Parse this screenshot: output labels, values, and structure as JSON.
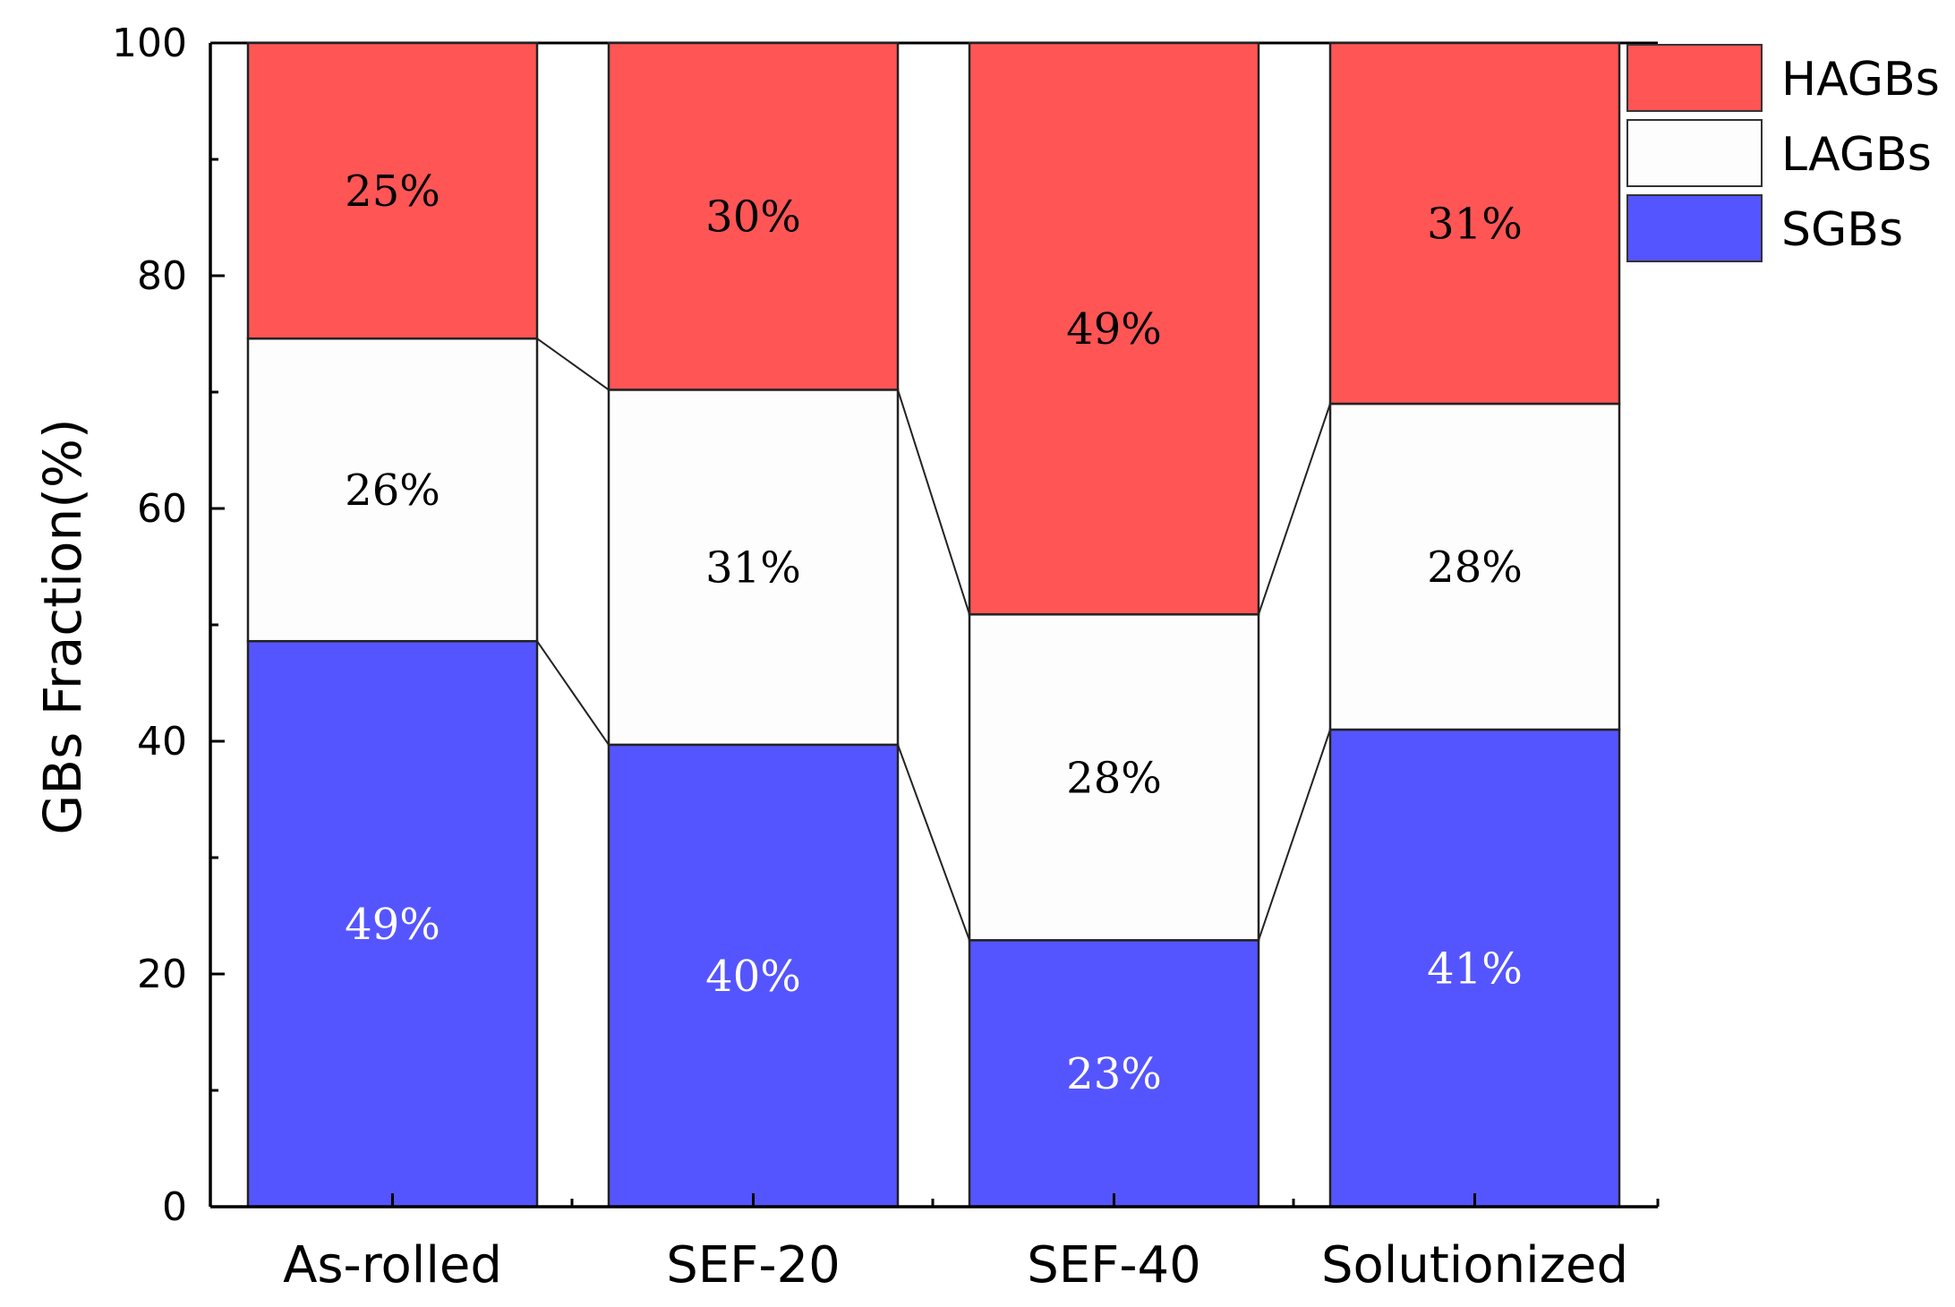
{
  "chart_data": {
    "type": "bar",
    "stacked": true,
    "title": "",
    "xlabel": "",
    "ylabel": "GBs Fraction(%)",
    "ylim": [
      0,
      100
    ],
    "yticks": [
      0,
      20,
      40,
      60,
      80,
      100
    ],
    "categories": [
      "As-rolled",
      "SEF-20",
      "SEF-40",
      "Solutionized"
    ],
    "series": [
      {
        "name": "SGBs",
        "color": "#5555ff",
        "label_color": "#ffffff",
        "values": [
          48.6,
          39.7,
          22.9,
          41.0
        ],
        "labels": [
          "49%",
          "40%",
          "23%",
          "41%"
        ]
      },
      {
        "name": "LAGBs",
        "color": "#fdfdfd",
        "label_color": "#000000",
        "values": [
          26.0,
          30.5,
          28.0,
          28.0
        ],
        "labels": [
          "26%",
          "31%",
          "28%",
          "28%"
        ]
      },
      {
        "name": "HAGBs",
        "color": "#ff5555",
        "label_color": "#000000",
        "values": [
          25.4,
          29.8,
          49.1,
          31.0
        ],
        "labels": [
          "25%",
          "30%",
          "49%",
          "31%"
        ]
      }
    ],
    "legend_order": [
      "HAGBs",
      "LAGBs",
      "SGBs"
    ],
    "legend_position": "top-right",
    "connector_lines": true,
    "grid": false
  }
}
